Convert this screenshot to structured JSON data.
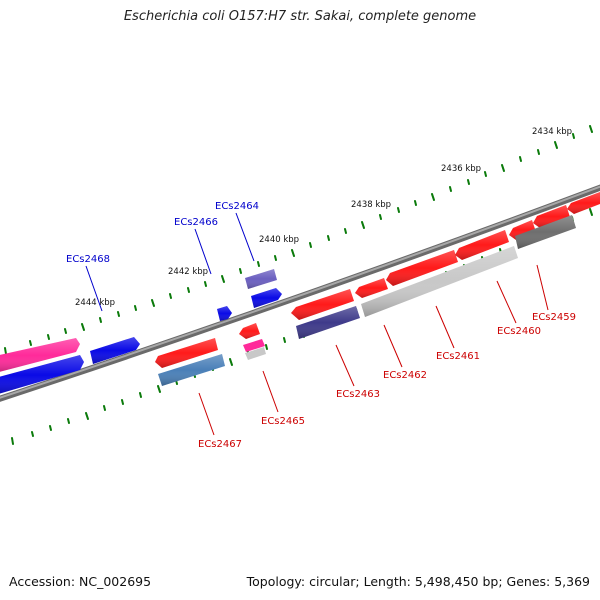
{
  "title": "Escherichia coli O157:H7 str. Sakai, complete genome",
  "accession": "Accession: NC_002695",
  "summary": "Topology: circular; Length: 5,498,450 bp; Genes: 5,369",
  "ticks": [
    "2434 kbp",
    "2436 kbp",
    "2438 kbp",
    "2440 kbp",
    "2442 kbp",
    "2444 kbp"
  ],
  "genes_top": [
    "ECs2464",
    "ECs2466",
    "ECs2468"
  ],
  "genes_bottom": [
    "ECs2459",
    "ECs2460",
    "ECs2461",
    "ECs2462",
    "ECs2463",
    "ECs2465",
    "ECs2467"
  ],
  "colors": {
    "forward_label": "#0000cc",
    "reverse_label": "#cc0000",
    "cds_red": "#ff1a1a",
    "cds_blue": "#0a0ae6",
    "cds_pink": "#ff2a9a",
    "cds_purple": "#6b5fc0",
    "cds_darkpurple": "#3e3a8a",
    "cds_steel": "#4a80b8",
    "cds_lightgray": "#c8c8c8",
    "cds_darkgray": "#6e6e6e",
    "backbone": "#7a7a7a",
    "tick": "#0a7a0a"
  }
}
